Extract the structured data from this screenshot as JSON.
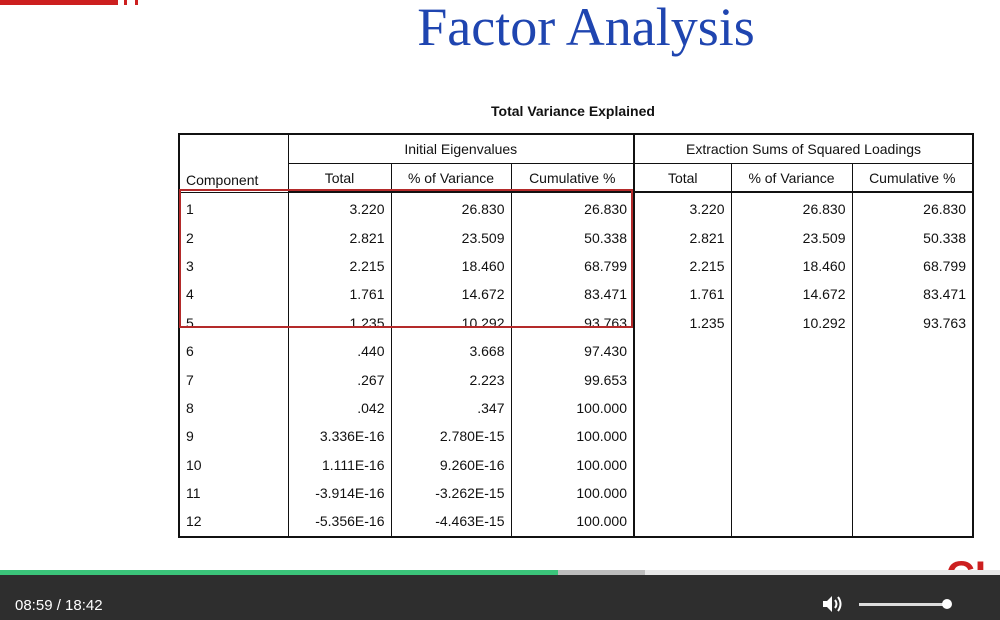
{
  "slide": {
    "title": "Factor Analysis"
  },
  "table": {
    "caption": "Total Variance Explained",
    "component_header": "Component",
    "group1": "Initial Eigenvalues",
    "group2": "Extraction Sums of Squared Loadings",
    "subheaders": [
      "Total",
      "% of Variance",
      "Cumulative %",
      "Total",
      "% of Variance",
      "Cumulative %"
    ],
    "rows": [
      [
        "1",
        "3.220",
        "26.830",
        "26.830",
        "3.220",
        "26.830",
        "26.830"
      ],
      [
        "2",
        "2.821",
        "23.509",
        "50.338",
        "2.821",
        "23.509",
        "50.338"
      ],
      [
        "3",
        "2.215",
        "18.460",
        "68.799",
        "2.215",
        "18.460",
        "68.799"
      ],
      [
        "4",
        "1.761",
        "14.672",
        "83.471",
        "1.761",
        "14.672",
        "83.471"
      ],
      [
        "5",
        "1.235",
        "10.292",
        "93.763",
        "1.235",
        "10.292",
        "93.763"
      ],
      [
        "6",
        ".440",
        "3.668",
        "97.430",
        "",
        "",
        ""
      ],
      [
        "7",
        ".267",
        "2.223",
        "99.653",
        "",
        "",
        ""
      ],
      [
        "8",
        ".042",
        ".347",
        "100.000",
        "",
        "",
        ""
      ],
      [
        "9",
        "3.336E-16",
        "2.780E-15",
        "100.000",
        "",
        "",
        ""
      ],
      [
        "10",
        "1.111E-16",
        "9.260E-16",
        "100.000",
        "",
        "",
        ""
      ],
      [
        "11",
        "-3.914E-16",
        "-3.262E-15",
        "100.000",
        "",
        "",
        ""
      ],
      [
        "12",
        "-5.356E-16",
        "-4.463E-15",
        "100.000",
        "",
        "",
        ""
      ]
    ]
  },
  "player": {
    "time": "08:59 / 18:42",
    "progress_fraction": 0.48,
    "volume_fraction": 0.95,
    "volume_icon": "volume-icon",
    "accent_color": "#3bc47a",
    "controls_bg": "#2e2e2e"
  },
  "logo": {
    "text": "CI",
    "color": "#cc1f1f"
  },
  "colors": {
    "title": "#1f45b0",
    "highlight": "#b42a2a"
  }
}
